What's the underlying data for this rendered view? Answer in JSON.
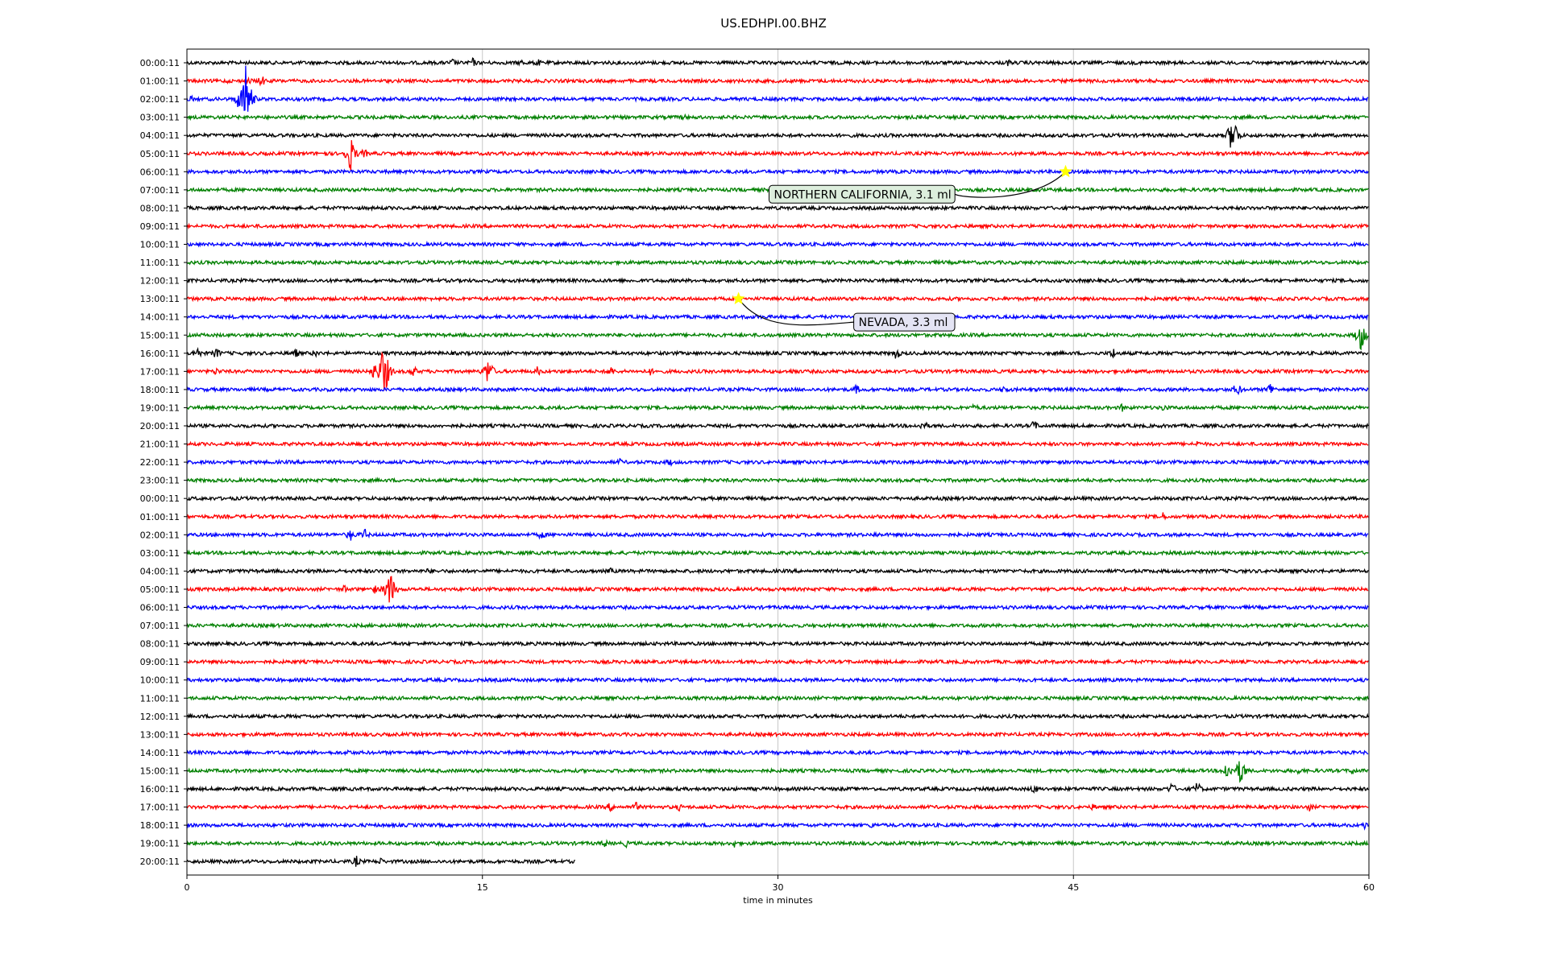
{
  "chart_data": {
    "type": "line",
    "title": "US.EDHPI.00.BHZ",
    "xlabel": "time in minutes",
    "ylabel": "",
    "xlim": [
      0,
      60
    ],
    "xticks": [
      0,
      15,
      30,
      45,
      60
    ],
    "grid_x": true,
    "colors": [
      "#000000",
      "#ff0000",
      "#0000ff",
      "#008000"
    ],
    "row_labels": [
      "00:00:11",
      "01:00:11",
      "02:00:11",
      "03:00:11",
      "04:00:11",
      "05:00:11",
      "06:00:11",
      "07:00:11",
      "08:00:11",
      "09:00:11",
      "10:00:11",
      "11:00:11",
      "12:00:11",
      "13:00:11",
      "14:00:11",
      "15:00:11",
      "16:00:11",
      "17:00:11",
      "18:00:11",
      "19:00:11",
      "20:00:11",
      "21:00:11",
      "22:00:11",
      "23:00:11",
      "00:00:11",
      "01:00:11",
      "02:00:11",
      "03:00:11",
      "04:00:11",
      "05:00:11",
      "06:00:11",
      "07:00:11",
      "08:00:11",
      "09:00:11",
      "10:00:11",
      "11:00:11",
      "12:00:11",
      "13:00:11",
      "14:00:11",
      "15:00:11",
      "16:00:11",
      "17:00:11",
      "18:00:11",
      "19:00:11",
      "20:00:11"
    ],
    "last_row_end_minute": 19.7,
    "events": [
      {
        "minute": 13.5,
        "row": 0,
        "amp": 6
      },
      {
        "minute": 14.5,
        "row": 0,
        "amp": 7
      },
      {
        "minute": 17.0,
        "row": 0,
        "amp": 5
      },
      {
        "minute": 17.8,
        "row": 0,
        "amp": 6
      },
      {
        "minute": 41.7,
        "row": 0,
        "amp": 5
      },
      {
        "minute": 2.0,
        "row": 1,
        "amp": 4
      },
      {
        "minute": 3.2,
        "row": 1,
        "amp": 5
      },
      {
        "minute": 3.8,
        "row": 1,
        "amp": 8
      },
      {
        "minute": 2.6,
        "row": 2,
        "amp": 12
      },
      {
        "minute": 3.0,
        "row": 2,
        "amp": 50
      },
      {
        "minute": 0.2,
        "row": 2,
        "amp": 5
      },
      {
        "minute": 25.2,
        "row": 3,
        "amp": 5
      },
      {
        "minute": 53.1,
        "row": 4,
        "amp": 30
      },
      {
        "minute": 7.0,
        "row": 5,
        "amp": 5
      },
      {
        "minute": 8.3,
        "row": 5,
        "amp": 25
      },
      {
        "minute": 9.0,
        "row": 5,
        "amp": 7
      },
      {
        "minute": 59.6,
        "row": 15,
        "amp": 22
      },
      {
        "minute": 0.5,
        "row": 16,
        "amp": 10
      },
      {
        "minute": 1.5,
        "row": 16,
        "amp": 8
      },
      {
        "minute": 5.5,
        "row": 16,
        "amp": 7
      },
      {
        "minute": 6.5,
        "row": 16,
        "amp": 6
      },
      {
        "minute": 36.0,
        "row": 16,
        "amp": 9
      },
      {
        "minute": 47.0,
        "row": 16,
        "amp": 8
      },
      {
        "minute": 1.5,
        "row": 17,
        "amp": 6
      },
      {
        "minute": 9.5,
        "row": 17,
        "amp": 12
      },
      {
        "minute": 10.0,
        "row": 17,
        "amp": 40
      },
      {
        "minute": 11.5,
        "row": 17,
        "amp": 8
      },
      {
        "minute": 15.3,
        "row": 17,
        "amp": 20
      },
      {
        "minute": 17.8,
        "row": 17,
        "amp": 7
      },
      {
        "minute": 21.5,
        "row": 17,
        "amp": 8
      },
      {
        "minute": 23.5,
        "row": 17,
        "amp": 6
      },
      {
        "minute": 30.8,
        "row": 17,
        "amp": 5
      },
      {
        "minute": 34.0,
        "row": 18,
        "amp": 7
      },
      {
        "minute": 41.5,
        "row": 18,
        "amp": 7
      },
      {
        "minute": 53.3,
        "row": 18,
        "amp": 10
      },
      {
        "minute": 55.0,
        "row": 18,
        "amp": 10
      },
      {
        "minute": 40.0,
        "row": 19,
        "amp": 6
      },
      {
        "minute": 47.5,
        "row": 19,
        "amp": 6
      },
      {
        "minute": 49.6,
        "row": 19,
        "amp": 6
      },
      {
        "minute": 37.4,
        "row": 20,
        "amp": 8
      },
      {
        "minute": 43.0,
        "row": 20,
        "amp": 8
      },
      {
        "minute": 51.3,
        "row": 21,
        "amp": 5
      },
      {
        "minute": 24.5,
        "row": 22,
        "amp": 6
      },
      {
        "minute": 22.0,
        "row": 22,
        "amp": 5
      },
      {
        "minute": 49.5,
        "row": 25,
        "amp": 7
      },
      {
        "minute": 8.3,
        "row": 26,
        "amp": 9
      },
      {
        "minute": 9.0,
        "row": 26,
        "amp": 9
      },
      {
        "minute": 18.0,
        "row": 26,
        "amp": 7
      },
      {
        "minute": 35.0,
        "row": 26,
        "amp": 5
      },
      {
        "minute": 21.5,
        "row": 28,
        "amp": 5
      },
      {
        "minute": 12.3,
        "row": 28,
        "amp": 5
      },
      {
        "minute": 8.0,
        "row": 29,
        "amp": 6
      },
      {
        "minute": 9.5,
        "row": 29,
        "amp": 7
      },
      {
        "minute": 10.3,
        "row": 29,
        "amp": 28
      },
      {
        "minute": 8.2,
        "row": 38,
        "amp": 5
      },
      {
        "minute": 52.8,
        "row": 39,
        "amp": 14
      },
      {
        "minute": 53.5,
        "row": 39,
        "amp": 20
      },
      {
        "minute": 56.5,
        "row": 39,
        "amp": 6
      },
      {
        "minute": 59.2,
        "row": 39,
        "amp": 6
      },
      {
        "minute": 43.0,
        "row": 40,
        "amp": 7
      },
      {
        "minute": 50.0,
        "row": 40,
        "amp": 9
      },
      {
        "minute": 51.3,
        "row": 40,
        "amp": 10
      },
      {
        "minute": 21.5,
        "row": 41,
        "amp": 7
      },
      {
        "minute": 22.8,
        "row": 41,
        "amp": 7
      },
      {
        "minute": 25.0,
        "row": 41,
        "amp": 5
      },
      {
        "minute": 46.0,
        "row": 41,
        "amp": 5
      },
      {
        "minute": 57.0,
        "row": 41,
        "amp": 6
      },
      {
        "minute": 34.8,
        "row": 42,
        "amp": 5
      },
      {
        "minute": 59.8,
        "row": 42,
        "amp": 6
      },
      {
        "minute": 21.2,
        "row": 43,
        "amp": 6
      },
      {
        "minute": 22.3,
        "row": 43,
        "amp": 5
      },
      {
        "minute": 27.8,
        "row": 43,
        "amp": 6
      },
      {
        "minute": 8.6,
        "row": 44,
        "amp": 8
      },
      {
        "minute": 9.8,
        "row": 44,
        "amp": 6
      }
    ],
    "annotations": [
      {
        "text": "NORTHERN CALIFORNIA, 3.1 ml",
        "minute": 44.6,
        "row": 6,
        "box_color": "#ddeedd"
      },
      {
        "text": "NEVADA, 3.3 ml",
        "minute": 28.0,
        "row": 13,
        "box_color": "#e4e4f4"
      }
    ],
    "marker_color": "#ffff00"
  }
}
